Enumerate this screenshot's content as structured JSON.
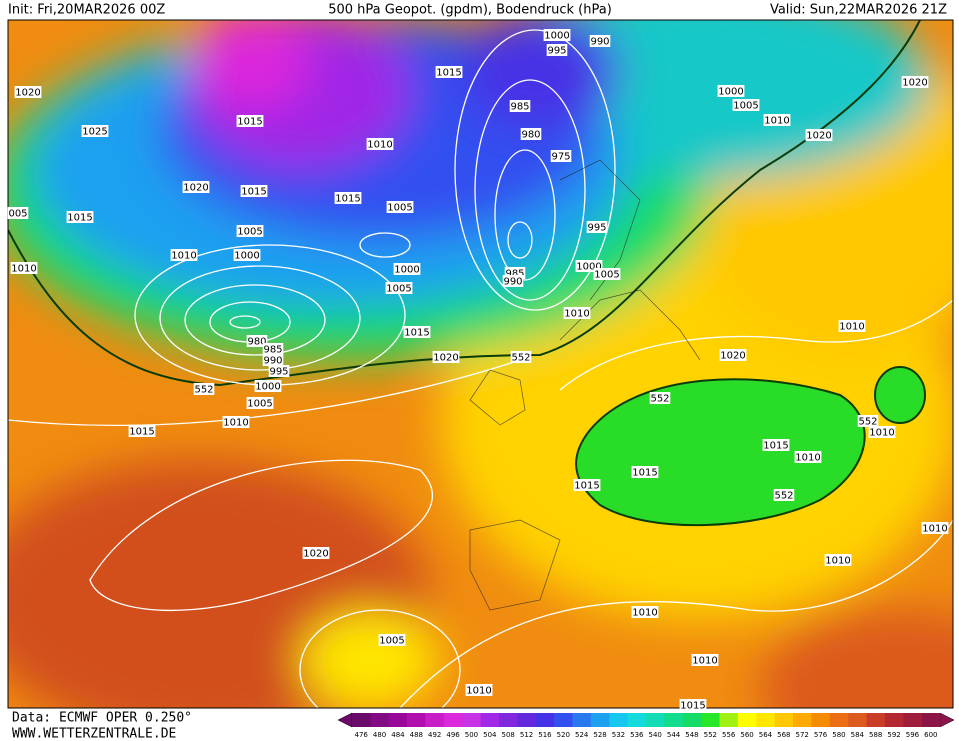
{
  "header": {
    "init": "Init: Fri,20MAR2026 00Z",
    "title": "500 hPa Geopot. (gpdm), Bodendruck (hPa)",
    "valid": "Valid: Sun,22MAR2026 21Z"
  },
  "isobar_labels": [
    1020,
    1025,
    1015,
    1010,
    1015,
    1000,
    995,
    990,
    985,
    980,
    975,
    1020,
    1015,
    1015,
    1005,
    995,
    1015,
    "005",
    1010,
    1010,
    1005,
    1000,
    1000,
    985,
    990,
    1000,
    1005,
    1005,
    1010,
    1015,
    1020,
    552,
    980,
    985,
    990,
    995,
    1000,
    552,
    1005,
    1010,
    1015,
    1000,
    1005,
    1010,
    1020,
    1020,
    1010,
    1020,
    552,
    552,
    1010,
    1015,
    1010,
    1015,
    1015,
    552,
    1020,
    1010,
    1010,
    1010,
    1005,
    1010,
    1010,
    1015
  ],
  "colorbar": {
    "labels": [
      476,
      480,
      484,
      488,
      492,
      496,
      500,
      504,
      508,
      512,
      516,
      520,
      524,
      528,
      532,
      536,
      540,
      544,
      548,
      552,
      556,
      560,
      564,
      568,
      572,
      576,
      580,
      584,
      588,
      592,
      596,
      600
    ],
    "colors": [
      "#6a0a6a",
      "#820a82",
      "#9a089a",
      "#b010b0",
      "#c81ec8",
      "#dc28dc",
      "#c832e6",
      "#a028e6",
      "#8228dc",
      "#6428dc",
      "#4632e6",
      "#3250f0",
      "#2878f0",
      "#1ea0f0",
      "#14c8f0",
      "#14dcdc",
      "#14dcb4",
      "#14dc8c",
      "#14dc64",
      "#28e628",
      "#a0f014",
      "#ffff00",
      "#ffe600",
      "#ffc800",
      "#ffaa00",
      "#f58c00",
      "#eb6e14",
      "#dc5a1e",
      "#c83c28",
      "#b42832",
      "#a01e3c",
      "#8c1446"
    ]
  },
  "footer": {
    "source": "Data: ECMWF OPER 0.250°",
    "site": "WWW.WETTERZENTRALE.DE"
  }
}
